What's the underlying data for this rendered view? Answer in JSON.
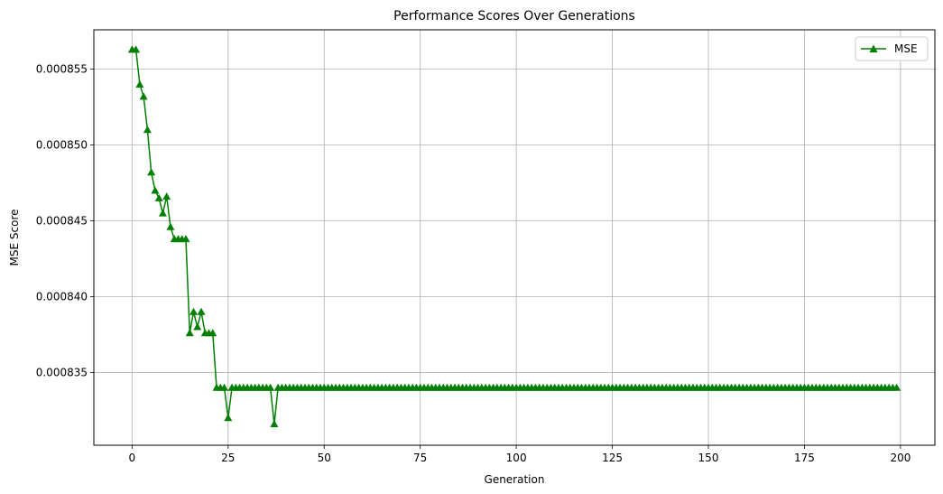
{
  "chart_data": {
    "type": "line",
    "title": "Performance Scores Over Generations",
    "xlabel": "Generation",
    "ylabel": "MSE Score",
    "xlim": [
      -9.95,
      208.95
    ],
    "ylim": [
      0.0008302,
      0.0008576
    ],
    "xticks": [
      0,
      25,
      50,
      75,
      100,
      125,
      150,
      175,
      200
    ],
    "yticks": [
      0.000835,
      0.00084,
      0.000845,
      0.00085,
      0.000855
    ],
    "ytick_labels": [
      "0.000835",
      "0.000840",
      "0.000845",
      "0.000850",
      "0.000855"
    ],
    "grid": true,
    "legend_position": "top-right",
    "color": "#008000",
    "marker": "triangle-up",
    "series": [
      {
        "name": "MSE",
        "x": [
          0,
          1,
          2,
          3,
          4,
          5,
          6,
          7,
          8,
          9,
          10,
          11,
          12,
          13,
          14,
          15,
          16,
          17,
          18,
          19,
          20,
          21,
          22,
          23,
          24,
          25,
          26,
          27,
          28,
          29,
          30,
          31,
          32,
          33,
          34,
          35,
          36,
          37
        ],
        "values": [
          0.0008563,
          0.0008563,
          0.000854,
          0.0008532,
          0.000851,
          0.0008482,
          0.000847,
          0.0008465,
          0.0008455,
          0.0008466,
          0.0008446,
          0.0008438,
          0.0008438,
          0.0008438,
          0.0008438,
          0.0008376,
          0.000839,
          0.000838,
          0.000839,
          0.0008376,
          0.0008376,
          0.0008376,
          0.000834,
          0.000834,
          0.000834,
          0.000832,
          0.000834,
          0.000834,
          0.000834,
          0.000834,
          0.000834,
          0.000834,
          0.000834,
          0.000834,
          0.000834,
          0.000834,
          0.000834,
          0.0008316
        ],
        "constant_tail": {
          "from_x": 38,
          "to_x": 199,
          "value": 0.000834
        }
      }
    ]
  }
}
